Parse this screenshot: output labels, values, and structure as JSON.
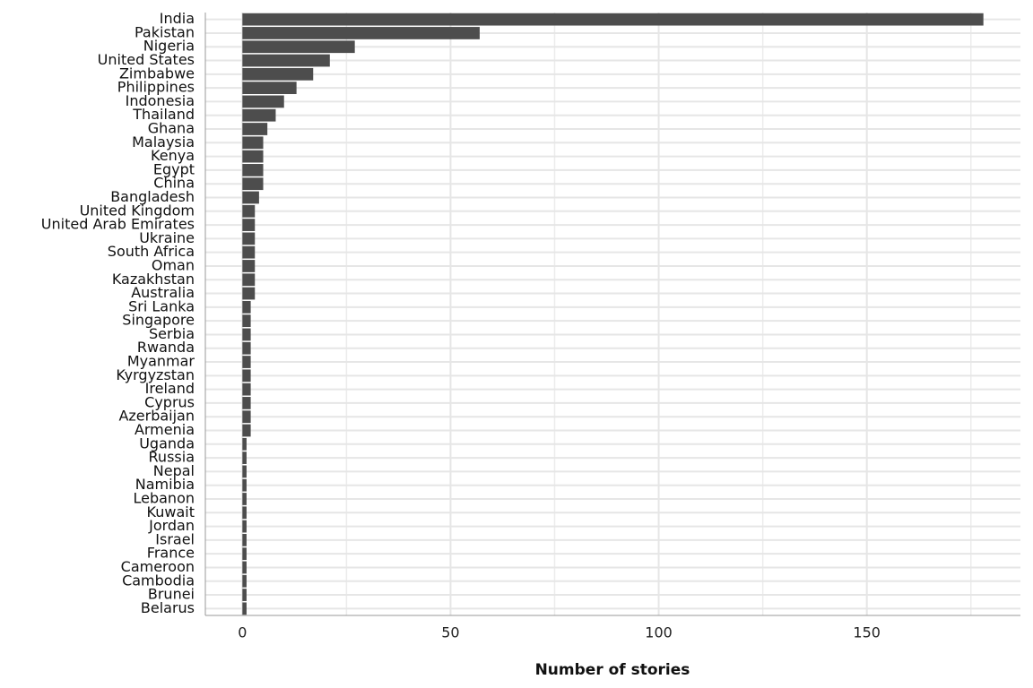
{
  "chart_data": {
    "type": "bar",
    "orientation": "horizontal",
    "x_label": "Number of stories",
    "categories": [
      "India",
      "Pakistan",
      "Nigeria",
      "United States",
      "Zimbabwe",
      "Philippines",
      "Indonesia",
      "Thailand",
      "Ghana",
      "Malaysia",
      "Kenya",
      "Egypt",
      "China",
      "Bangladesh",
      "United Kingdom",
      "United Arab Emirates",
      "Ukraine",
      "South Africa",
      "Oman",
      "Kazakhstan",
      "Australia",
      "Sri Lanka",
      "Singapore",
      "Serbia",
      "Rwanda",
      "Myanmar",
      "Kyrgyzstan",
      "Ireland",
      "Cyprus",
      "Azerbaijan",
      "Armenia",
      "Uganda",
      "Russia",
      "Nepal",
      "Namibia",
      "Lebanon",
      "Kuwait",
      "Jordan",
      "Israel",
      "France",
      "Cameroon",
      "Cambodia",
      "Brunei",
      "Belarus"
    ],
    "values": [
      178,
      57,
      27,
      21,
      17,
      13,
      10,
      8,
      6,
      5,
      5,
      5,
      5,
      4,
      3,
      3,
      3,
      3,
      3,
      3,
      3,
      2,
      2,
      2,
      2,
      2,
      2,
      2,
      2,
      2,
      2,
      1,
      1,
      1,
      1,
      1,
      1,
      1,
      1,
      1,
      1,
      1,
      1,
      1
    ],
    "color": "#4d4d4d",
    "xlim": [
      -8.9,
      186.9
    ],
    "xticks": [
      0,
      50,
      100,
      150
    ],
    "minor_xticks": [
      25,
      75,
      125,
      175
    ],
    "grid": true
  }
}
